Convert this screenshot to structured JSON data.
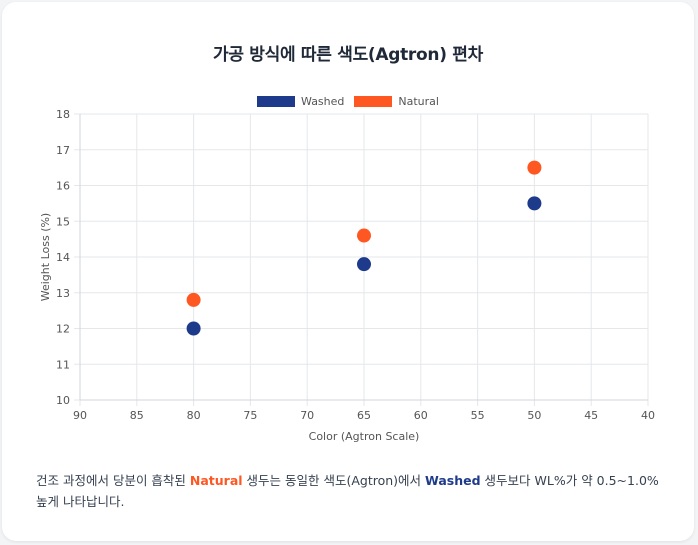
{
  "title": "가공 방식에 따른 색도(Agtron) 편차",
  "legend": [
    {
      "label": "Washed",
      "color": "#1e3a8a"
    },
    {
      "label": "Natural",
      "color": "#ff5722"
    }
  ],
  "caption": {
    "pre": "건조 과정에서 당분이 흡착된 ",
    "natural": "Natural",
    "mid": " 생두는 동일한 색도(Agtron)에서 ",
    "washed": "Washed",
    "post": " 생두보다 WL%가 약 0.5~1.0% 높게 나타납니다."
  },
  "chart_data": {
    "type": "scatter",
    "xlabel": "Color (Agtron Scale)",
    "ylabel": "Weight Loss (%)",
    "xlim": [
      90,
      40
    ],
    "ylim": [
      10,
      18
    ],
    "x_reversed": true,
    "x_ticks": [
      90,
      85,
      80,
      75,
      70,
      65,
      60,
      55,
      50,
      45,
      40
    ],
    "y_ticks": [
      10,
      11,
      12,
      13,
      14,
      15,
      16,
      17,
      18
    ],
    "grid": true,
    "legend_position": "top-center",
    "series": [
      {
        "name": "Washed",
        "color": "#1e3a8a",
        "points": [
          {
            "x": 80,
            "y": 12.0
          },
          {
            "x": 65,
            "y": 13.8
          },
          {
            "x": 50,
            "y": 15.5
          }
        ]
      },
      {
        "name": "Natural",
        "color": "#ff5722",
        "points": [
          {
            "x": 80,
            "y": 12.8
          },
          {
            "x": 65,
            "y": 14.6
          },
          {
            "x": 50,
            "y": 16.5
          }
        ]
      }
    ]
  }
}
